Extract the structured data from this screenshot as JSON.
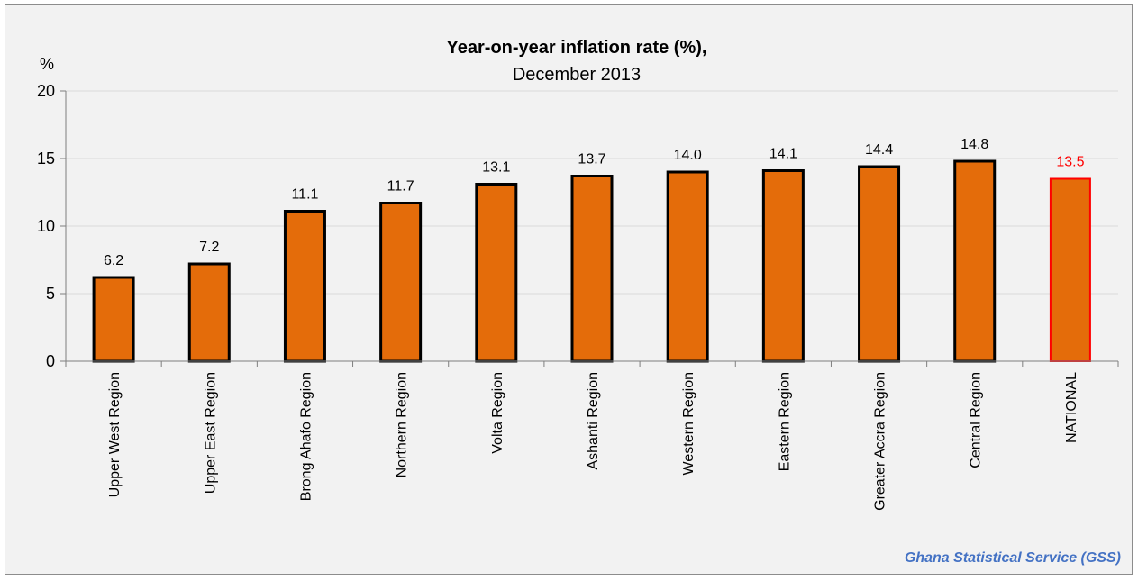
{
  "chart_data": {
    "type": "bar",
    "title": "Year-on-year inflation rate (%),",
    "subtitle": "December 2013",
    "ylabel": "%",
    "xlabel": "",
    "ylim": [
      0,
      20
    ],
    "yticks": [
      0,
      5,
      10,
      15,
      20
    ],
    "grid": true,
    "categories": [
      "Upper West Region",
      "Upper East Region",
      "Brong Ahafo Region",
      "Northern Region",
      "Volta Region",
      "Ashanti Region",
      "Western Region",
      "Eastern Region",
      "Greater Accra Region",
      "Central Region",
      "NATIONAL"
    ],
    "values": [
      6.2,
      7.2,
      11.1,
      11.7,
      13.1,
      13.7,
      14.0,
      14.1,
      14.4,
      14.8,
      13.5
    ],
    "data_labels": [
      "6.2",
      "7.2",
      "11.1",
      "11.7",
      "13.1",
      "13.7",
      "14.0",
      "14.1",
      "14.4",
      "14.8",
      "13.5"
    ],
    "colors": {
      "bar_fill": "#e46c0a",
      "bar_stroke": "#000000",
      "highlight_stroke": "#ff0000",
      "highlight_label": "#ff0000",
      "highlight_category": "NATIONAL",
      "grid": "#d9d9d9"
    }
  },
  "source": "Ghana Statistical Service (GSS)"
}
